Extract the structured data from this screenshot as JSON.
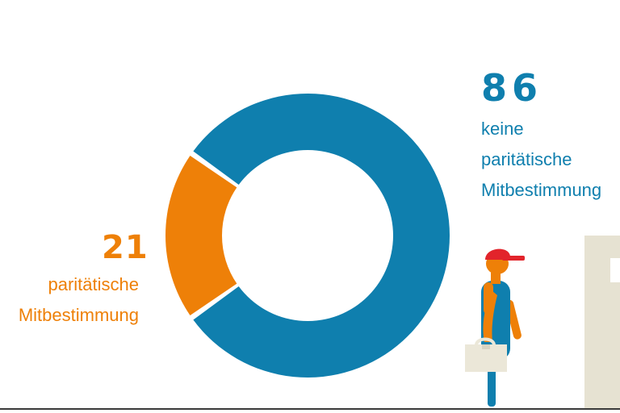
{
  "chart_data": {
    "type": "pie",
    "variant": "donut",
    "title": "",
    "categories": [
      "paritätische Mitbestimmung",
      "keine paritätische Mitbestimmung"
    ],
    "values": [
      21,
      86
    ],
    "value_labels": [
      "21",
      "86"
    ],
    "label_lines": [
      [
        "paritätische",
        "Mitbestimmung"
      ],
      [
        "keine",
        "paritätische",
        "Mitbestimmung"
      ]
    ],
    "colors": [
      "#ee8008",
      "#0f7fae"
    ],
    "legend": "none"
  },
  "illustration": {
    "figure_icon": "worker-with-toolbox-icon",
    "building_icon": "building-icon",
    "colors": {
      "cap": "#e2242b",
      "overalls": "#0f7fae",
      "skin": "#ee8008",
      "toolbox": "#ebe7d8",
      "building": "#e6e2d2"
    }
  }
}
